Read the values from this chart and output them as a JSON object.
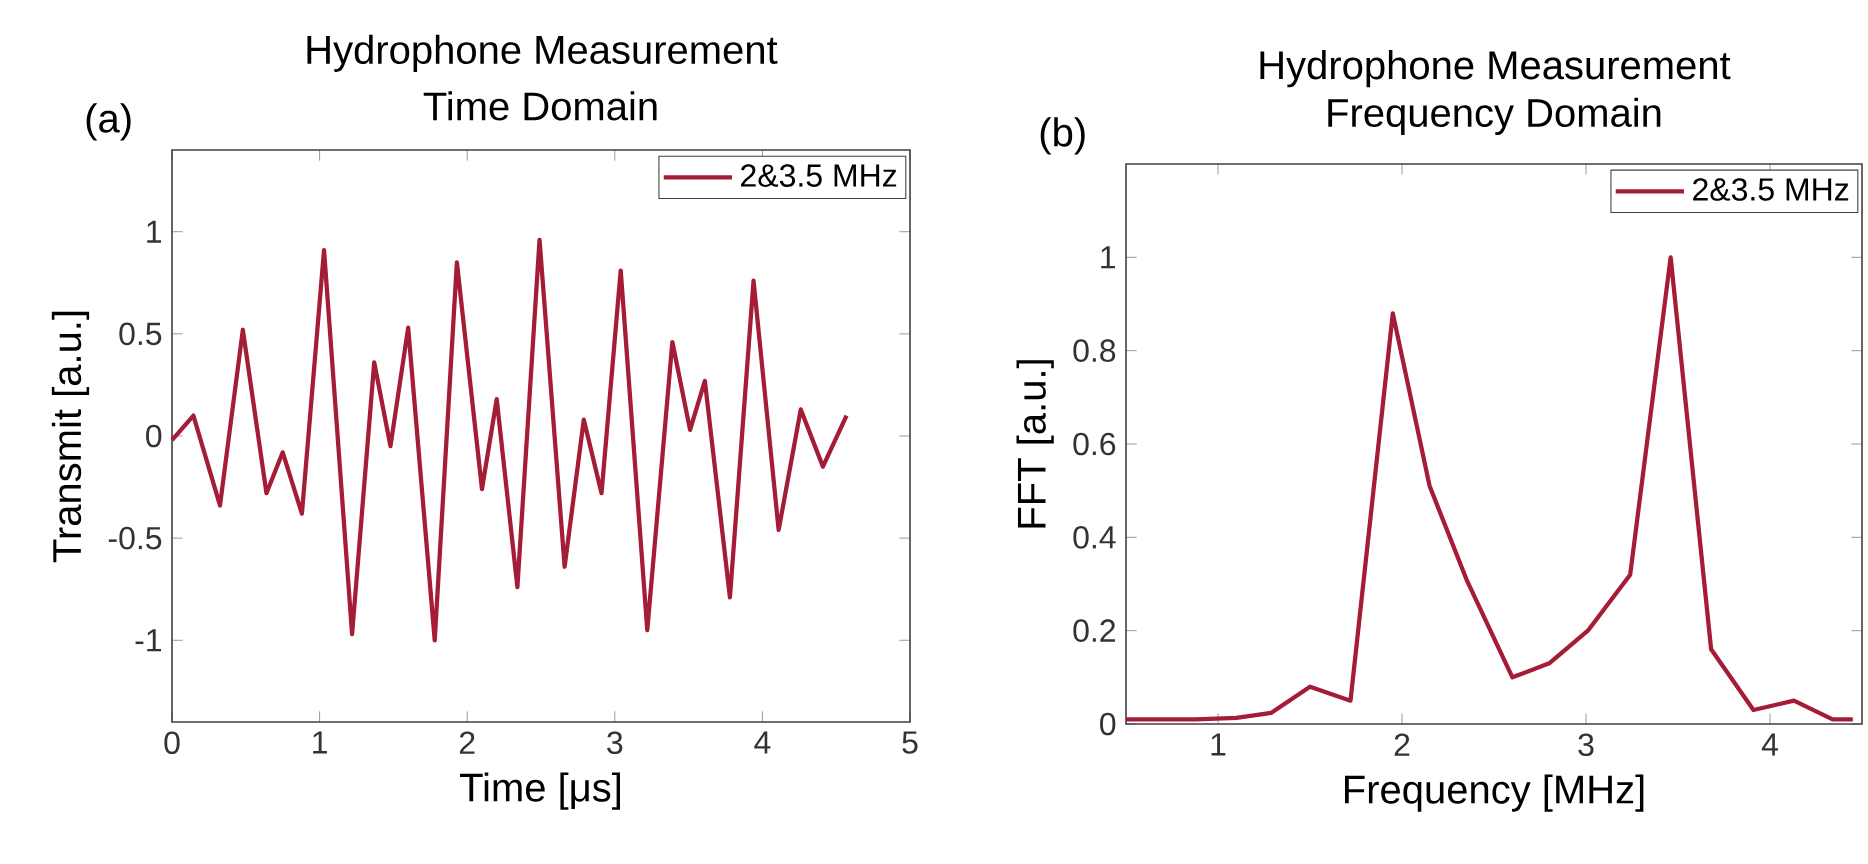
{
  "chart_data": [
    {
      "type": "line",
      "title": "Hydrophone Measurement",
      "subtitle": "Time Domain",
      "xlabel": "Time [μs]",
      "ylabel": "Transmit [a.u.]",
      "annotations": [
        "(a)"
      ],
      "x": [
        0,
        0.145,
        0.325,
        0.48,
        0.64,
        0.75,
        0.88,
        1.03,
        1.22,
        1.37,
        1.48,
        1.6,
        1.78,
        1.93,
        2.1,
        2.2,
        2.34,
        2.49,
        2.66,
        2.79,
        2.91,
        3.04,
        3.22,
        3.39,
        3.51,
        3.61,
        3.78,
        3.94,
        4.11,
        4.26,
        4.41,
        4.57
      ],
      "series": [
        {
          "name": "2&3.5 MHz",
          "color": "#a51c36",
          "values": [
            -0.02,
            0.1,
            -0.34,
            0.52,
            -0.28,
            -0.08,
            -0.38,
            0.91,
            -0.97,
            0.36,
            -0.05,
            0.53,
            -1.0,
            0.85,
            -0.26,
            0.18,
            -0.74,
            0.96,
            -0.64,
            0.08,
            -0.28,
            0.81,
            -0.95,
            0.46,
            0.03,
            0.27,
            -0.79,
            0.76,
            -0.46,
            0.13,
            -0.15,
            0.1
          ]
        }
      ],
      "xlim": [
        0,
        5
      ],
      "ylim": [
        -1.4,
        1.4
      ],
      "xticks": [
        0,
        1,
        2,
        3,
        4,
        5
      ],
      "yticks": [
        -1,
        -0.5,
        0,
        0.5,
        1
      ],
      "legend": "top right",
      "grid": false,
      "line_style": "solid",
      "marker": "none"
    },
    {
      "type": "line",
      "title": "Hydrophone Measurement",
      "subtitle": "Frequency Domain",
      "xlabel": "Frequency [MHz]",
      "ylabel": "FFT [a.u.]",
      "annotations": [
        "(b)"
      ],
      "x": [
        0.5,
        0.88,
        1.1,
        1.29,
        1.5,
        1.72,
        1.95,
        2.15,
        2.35,
        2.6,
        2.8,
        3.01,
        3.24,
        3.46,
        3.68,
        3.91,
        4.13,
        4.34,
        4.45
      ],
      "series": [
        {
          "name": "2&3.5 MHz",
          "color": "#a51c36",
          "values": [
            0.01,
            0.01,
            0.013,
            0.024,
            0.08,
            0.05,
            0.88,
            0.51,
            0.31,
            0.1,
            0.13,
            0.2,
            0.32,
            1.0,
            0.16,
            0.03,
            0.05,
            0.01,
            0.01
          ]
        }
      ],
      "xlim": [
        0.5,
        4.5
      ],
      "ylim": [
        0,
        1.2
      ],
      "xticks": [
        1,
        2,
        3,
        4
      ],
      "yticks": [
        0,
        0.2,
        0.4,
        0.6,
        0.8,
        1
      ],
      "legend": "top right",
      "grid": false,
      "line_style": "solid",
      "marker": "none"
    }
  ]
}
